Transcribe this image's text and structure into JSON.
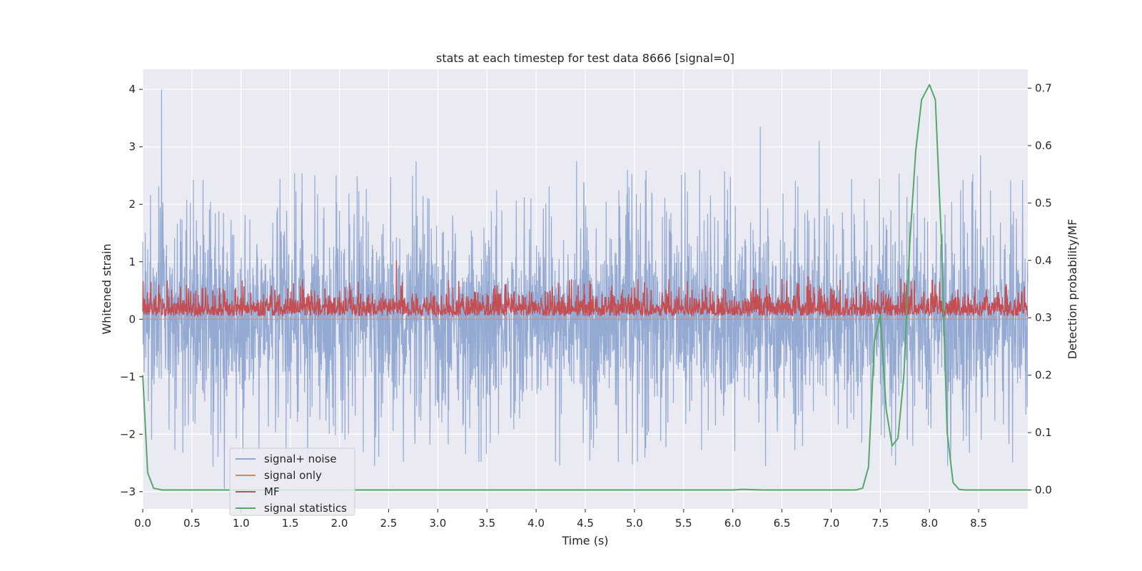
{
  "chart_data": {
    "type": "line",
    "title": "stats at each timestep for test data 8666 [signal=0]",
    "xlabel": "Time (s)",
    "ylabel": "Whitened strain",
    "y2label": "Detection probability/MF",
    "xlim": [
      0.0,
      9.0
    ],
    "ylim": [
      -3.3,
      4.35
    ],
    "y2lim": [
      -0.033,
      0.733
    ],
    "xticks": [
      "0.0",
      "0.5",
      "1.0",
      "1.5",
      "2.0",
      "2.5",
      "3.0",
      "3.5",
      "4.0",
      "4.5",
      "5.0",
      "5.5",
      "6.0",
      "6.5",
      "7.0",
      "7.5",
      "8.0",
      "8.5"
    ],
    "yticks": [
      "−3",
      "−2",
      "−1",
      "0",
      "1",
      "2",
      "3",
      "4"
    ],
    "y2ticks": [
      "0.0",
      "0.1",
      "0.2",
      "0.3",
      "0.4",
      "0.5",
      "0.6",
      "0.7"
    ],
    "grid": true,
    "legend_position": "lower-left",
    "series": [
      {
        "name": "signal+ noise",
        "axis": "left",
        "color": "#8fa6d1",
        "description_values": {
          "x_range": [
            0.0,
            9.0
          ],
          "typical_range": [
            -1.0,
            1.0
          ],
          "peak_max": [
            0.19,
            4.0
          ],
          "peak_min": [
            0.83,
            -2.95
          ],
          "notable_peaks": [
            [
              6.28,
              3.35
            ],
            [
              6.88,
              3.1
            ],
            [
              4.41,
              2.75
            ],
            [
              2.78,
              2.75
            ],
            [
              8.52,
              2.85
            ]
          ]
        }
      },
      {
        "name": "signal only",
        "axis": "left",
        "color": "#dd8452",
        "values_constant": 0.0
      },
      {
        "name": "MF",
        "axis": "right",
        "color": "#c44e52",
        "description_values": {
          "x_range": [
            0.0,
            9.0
          ],
          "baseline": 0.303,
          "typical_range": [
            0.3,
            0.37
          ],
          "peak": [
            2.58,
            0.4
          ]
        }
      },
      {
        "name": "signal statistics",
        "axis": "right",
        "color": "#55a868",
        "x": [
          0.0,
          0.05,
          0.11,
          0.2,
          0.3,
          0.5,
          1.0,
          2.0,
          3.0,
          4.0,
          5.0,
          6.0,
          6.1,
          6.3,
          7.0,
          7.25,
          7.32,
          7.38,
          7.44,
          7.5,
          7.56,
          7.62,
          7.68,
          7.74,
          7.8,
          7.86,
          7.92,
          8.0,
          8.06,
          8.12,
          8.18,
          8.24,
          8.3,
          8.36,
          8.5,
          9.0
        ],
        "values": [
          0.2,
          0.03,
          0.003,
          0.0,
          0.0,
          0.0,
          0.0,
          0.0,
          0.0,
          0.0,
          0.0,
          0.0,
          0.001,
          0.0,
          0.0,
          0.0,
          0.003,
          0.04,
          0.26,
          0.305,
          0.14,
          0.077,
          0.09,
          0.2,
          0.43,
          0.59,
          0.68,
          0.706,
          0.68,
          0.44,
          0.1,
          0.013,
          0.001,
          0.0,
          0.0,
          0.0
        ]
      }
    ]
  }
}
